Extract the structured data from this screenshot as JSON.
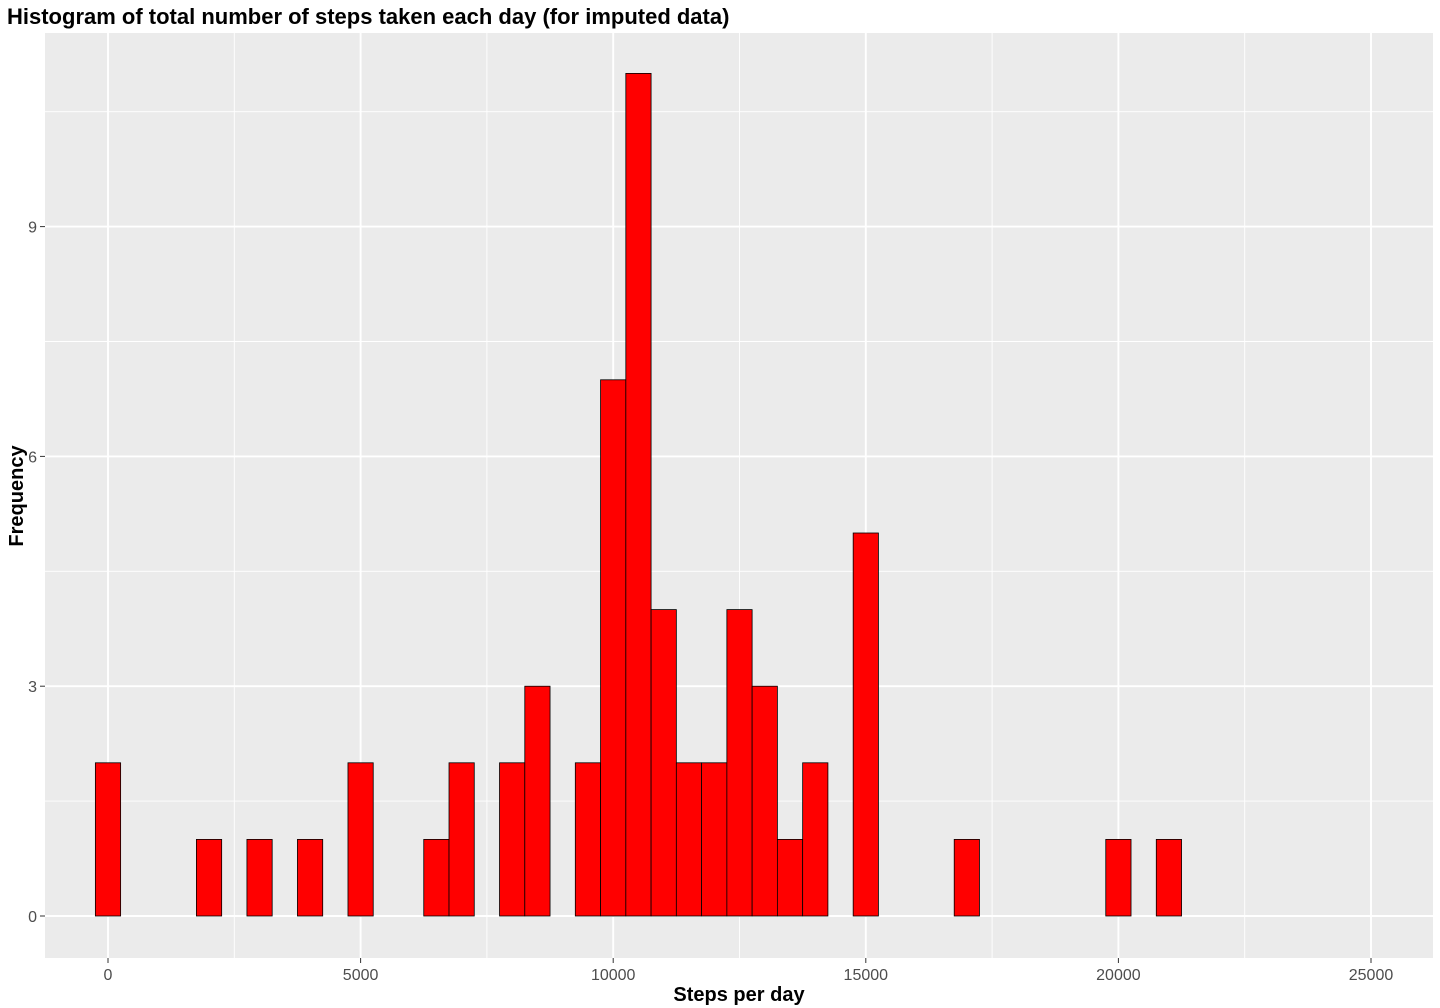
{
  "chart_data": {
    "type": "bar",
    "title": "Histogram of total number of steps taken each day (for imputed data)",
    "xlabel": "Steps per day",
    "ylabel": "Frequency",
    "xlim": [
      0,
      25000
    ],
    "ylim": [
      0,
      11
    ],
    "x_ticks": [
      0,
      5000,
      10000,
      15000,
      20000,
      25000
    ],
    "y_ticks": [
      0,
      3,
      6,
      9
    ],
    "bin_width": 500,
    "bin_centers": [
      0,
      500,
      1000,
      1500,
      2000,
      2500,
      3000,
      3500,
      4000,
      4500,
      5000,
      5500,
      6000,
      6500,
      7000,
      7500,
      8000,
      8500,
      9000,
      9500,
      10000,
      10500,
      11000,
      11500,
      12000,
      12500,
      13000,
      13500,
      14000,
      14500,
      15000,
      15500,
      16000,
      16500,
      17000,
      17500,
      18000,
      18500,
      19000,
      19500,
      20000,
      20500,
      21000,
      21500,
      22000,
      22500,
      23000,
      23500,
      24000,
      24500,
      25000
    ],
    "counts": [
      2,
      0,
      0,
      0,
      1,
      0,
      1,
      0,
      1,
      0,
      2,
      0,
      0,
      1,
      2,
      0,
      2,
      3,
      0,
      2,
      7,
      11,
      4,
      2,
      2,
      4,
      3,
      1,
      2,
      0,
      5,
      0,
      0,
      0,
      1,
      0,
      0,
      0,
      0,
      0,
      1,
      0,
      1,
      0,
      0,
      0,
      0,
      0,
      0,
      0,
      0
    ],
    "grid": true,
    "colors": {
      "bar_fill": "#ff0000",
      "bar_outline": "#000000",
      "panel_background": "#ebebeb",
      "grid": "#ffffff"
    }
  }
}
